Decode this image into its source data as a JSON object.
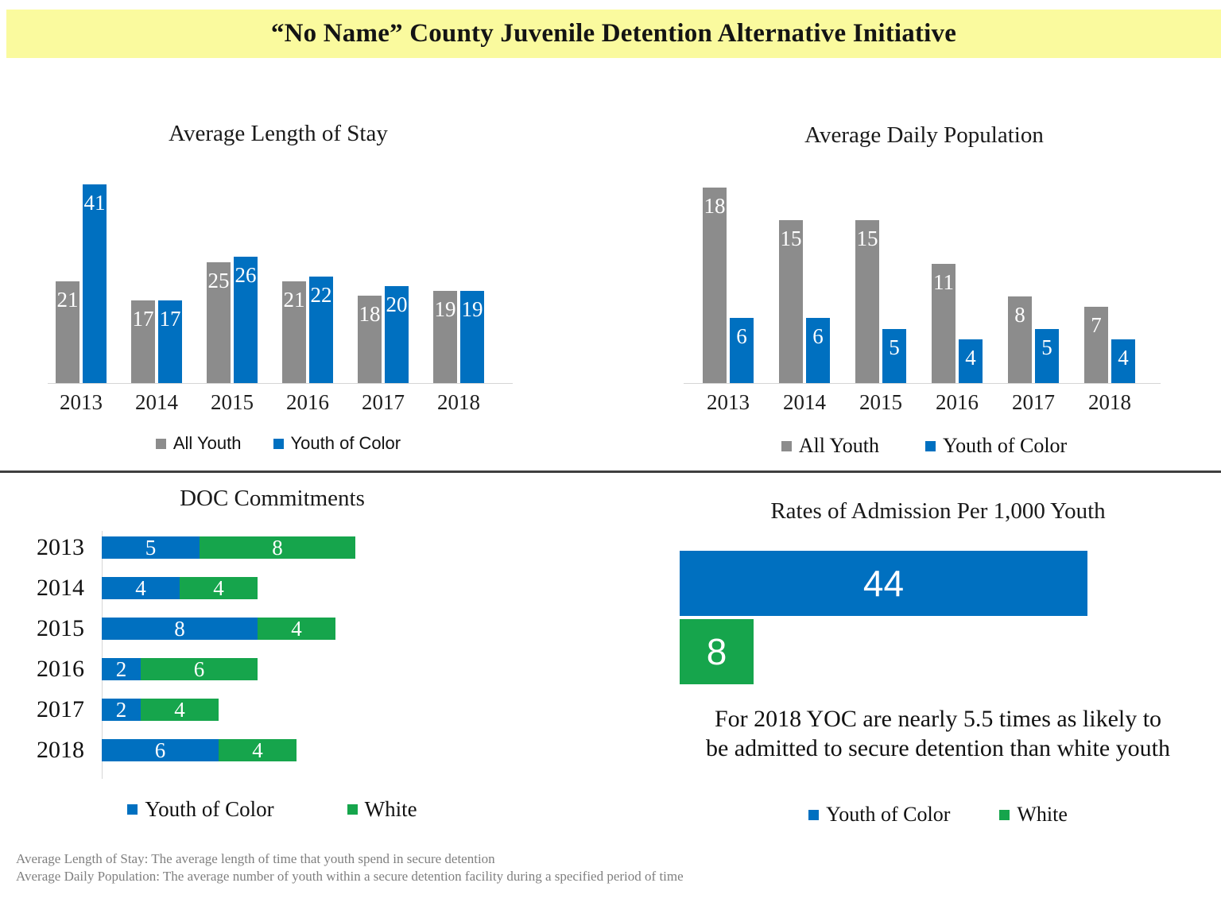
{
  "banner": {
    "title": "“No Name” County Juvenile Detention Alternative Initiative",
    "background": "#FAFA9E"
  },
  "colors": {
    "all_youth_gray": "#8C8C8C",
    "youth_of_color_blue": "#0070C0",
    "white_green": "#16A54C",
    "axis_gray": "#D6D6D6",
    "divider_dark": "#3F3F3F",
    "banner_yellow": "#FAFA9E"
  },
  "chart_data": [
    {
      "id": "average-length-of-stay",
      "type": "bar",
      "orientation": "vertical-grouped",
      "title": "Average Length of Stay",
      "categories": [
        "2013",
        "2014",
        "2015",
        "2016",
        "2017",
        "2018"
      ],
      "series": [
        {
          "name": "All Youth",
          "color": "#8C8C8C",
          "values": [
            21,
            17,
            25,
            21,
            18,
            19
          ]
        },
        {
          "name": "Youth of Color",
          "color": "#0070C0",
          "values": [
            41,
            17,
            26,
            22,
            20,
            19
          ]
        }
      ],
      "ylim": [
        0,
        41
      ],
      "grid": false,
      "data_labels": "inside-end",
      "legend_position": "bottom"
    },
    {
      "id": "average-daily-population",
      "type": "bar",
      "orientation": "vertical-grouped",
      "title": "Average Daily Population",
      "categories": [
        "2013",
        "2014",
        "2015",
        "2016",
        "2017",
        "2018"
      ],
      "series": [
        {
          "name": "All Youth",
          "color": "#8C8C8C",
          "values": [
            18,
            15,
            15,
            11,
            8,
            7
          ]
        },
        {
          "name": "Youth of Color",
          "color": "#0070C0",
          "values": [
            6,
            6,
            5,
            4,
            5,
            4
          ]
        }
      ],
      "ylim": [
        0,
        18
      ],
      "grid": false,
      "data_labels": "inside-end",
      "legend_position": "bottom"
    },
    {
      "id": "doc-commitments",
      "type": "bar",
      "orientation": "horizontal-stacked",
      "title": "DOC Commitments",
      "categories": [
        "2013",
        "2014",
        "2015",
        "2016",
        "2017",
        "2018"
      ],
      "series": [
        {
          "name": "Youth of Color",
          "color": "#0070C0",
          "values": [
            5,
            4,
            8,
            2,
            2,
            6
          ]
        },
        {
          "name": "White",
          "color": "#16A54C",
          "values": [
            8,
            4,
            4,
            6,
            4,
            4
          ]
        }
      ],
      "xlim": [
        0,
        13
      ],
      "grid": false,
      "data_labels": "center",
      "legend_position": "bottom"
    },
    {
      "id": "admission-rates",
      "type": "bar",
      "orientation": "horizontal",
      "title": "Rates of Admission Per 1,000 Youth",
      "categories": [
        "Youth of Color",
        "White"
      ],
      "series": [
        {
          "name": "Youth of Color",
          "color": "#0070C0",
          "values": [
            44
          ]
        },
        {
          "name": "White",
          "color": "#16A54C",
          "values": [
            8
          ]
        }
      ],
      "xlim": [
        0,
        44
      ],
      "grid": false,
      "data_labels": "center",
      "legend_position": "bottom",
      "annotation_lines": [
        "For 2018 YOC are nearly 5.5 times as likely to",
        "be admitted to secure detention than white youth"
      ]
    }
  ],
  "footnotes": [
    "Average Length of Stay: The average length of time that youth spend in secure detention",
    "Average Daily Population: The average number of youth within a secure detention facility during a specified period of time"
  ]
}
